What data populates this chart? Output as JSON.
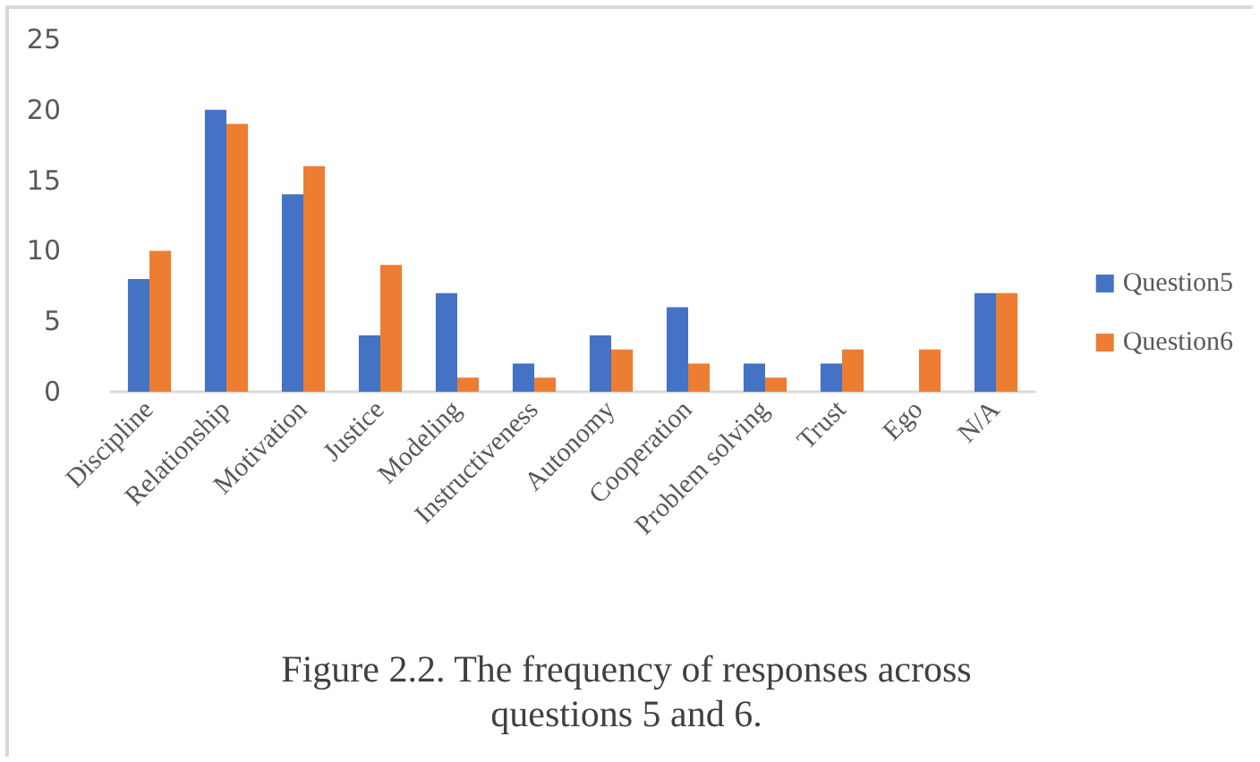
{
  "chart_data": {
    "type": "bar",
    "categories": [
      "Discipline",
      "Relationship",
      "Motivation",
      "Justice",
      "Modeling",
      "Instructiveness",
      "Autonomy",
      "Cooperation",
      "Problem solving",
      "Trust",
      "Ego",
      "N/A"
    ],
    "series": [
      {
        "name": "Question5",
        "color": "#4472c4",
        "values": [
          8,
          20,
          14,
          4,
          7,
          2,
          4,
          6,
          2,
          2,
          0,
          7
        ]
      },
      {
        "name": "Question6",
        "color": "#ed7d31",
        "values": [
          10,
          19,
          16,
          9,
          1,
          1,
          3,
          2,
          1,
          3,
          3,
          7
        ]
      }
    ],
    "ylim": [
      0,
      25
    ],
    "yticks": [
      0,
      5,
      10,
      15,
      20,
      25
    ],
    "grid": false,
    "legend": "right",
    "annotations": [
      "Figure 2.2. The frequency of responses across questions 5 and 6."
    ]
  }
}
